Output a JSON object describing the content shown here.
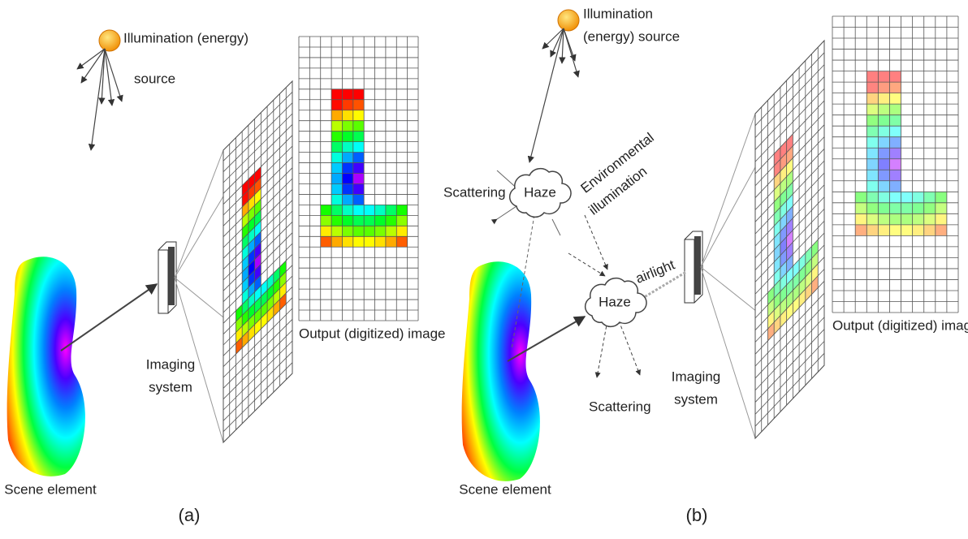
{
  "panels": [
    {
      "caption": "(a)",
      "illumination": [
        "Illumination (energy)",
        "source"
      ],
      "imaging": [
        "Imaging",
        "system"
      ],
      "output": "Output (digitized) image",
      "scene": "Scene element"
    },
    {
      "caption": "(b)",
      "illumination": [
        "Illumination",
        "(energy) source"
      ],
      "imaging": [
        "Imaging",
        "system"
      ],
      "output": "Output (digitized) image",
      "scene": "Scene element",
      "scattering_top": "Scattering",
      "scattering_bottom": "Scattering",
      "haze_top": "Haze",
      "haze_bottom": "Haze",
      "environmental": [
        "Environmental",
        "illumination"
      ],
      "airlight": "airlight"
    }
  ]
}
